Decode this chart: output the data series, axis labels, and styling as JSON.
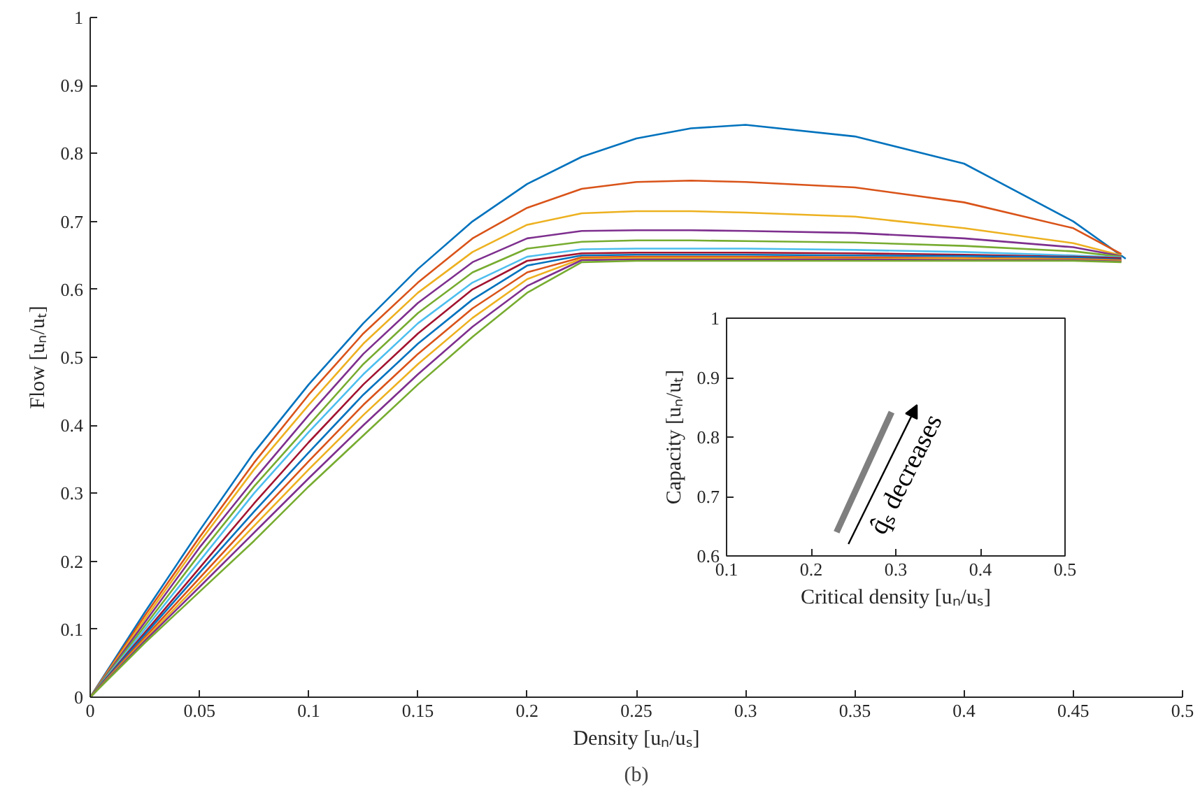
{
  "chart_data": [
    {
      "type": "line",
      "xlabel": "Density [uₙ/uₛ]",
      "ylabel": "Flow [uₙ/uₜ]",
      "annotations": [
        "(b)"
      ],
      "x": [
        0,
        0.025,
        0.05,
        0.075,
        0.1,
        0.125,
        0.15,
        0.175,
        0.2,
        0.225,
        0.25,
        0.275,
        0.3,
        0.35,
        0.4,
        0.45,
        0.472
      ],
      "xlim": [
        0,
        0.5
      ],
      "ylim": [
        0,
        1
      ],
      "xticks": [
        0,
        0.05,
        0.1,
        0.15,
        0.2,
        0.25,
        0.3,
        0.35,
        0.4,
        0.45,
        0.5
      ],
      "yticks": [
        0,
        0.1,
        0.2,
        0.3,
        0.4,
        0.5,
        0.6,
        0.7,
        0.8,
        0.9,
        1
      ],
      "series": [
        {
          "color": "#0072bd",
          "x": [
            0,
            0.025,
            0.05,
            0.075,
            0.1,
            0.125,
            0.15,
            0.175,
            0.2,
            0.225,
            0.25,
            0.275,
            0.3,
            0.35,
            0.4,
            0.45,
            0.474
          ],
          "values": [
            0,
            0.125,
            0.245,
            0.36,
            0.46,
            0.55,
            0.63,
            0.7,
            0.755,
            0.795,
            0.822,
            0.837,
            0.842,
            0.825,
            0.785,
            0.7,
            0.645
          ]
        },
        {
          "color": "#d95319",
          "values": [
            0,
            0.12,
            0.235,
            0.345,
            0.445,
            0.535,
            0.61,
            0.675,
            0.72,
            0.748,
            0.758,
            0.76,
            0.758,
            0.75,
            0.728,
            0.69,
            0.652
          ]
        },
        {
          "color": "#edb120",
          "values": [
            0,
            0.115,
            0.228,
            0.335,
            0.43,
            0.52,
            0.595,
            0.655,
            0.695,
            0.712,
            0.715,
            0.715,
            0.713,
            0.707,
            0.69,
            0.668,
            0.65
          ]
        },
        {
          "color": "#7e2f8e",
          "values": [
            0,
            0.11,
            0.22,
            0.32,
            0.415,
            0.505,
            0.58,
            0.64,
            0.675,
            0.686,
            0.687,
            0.687,
            0.686,
            0.683,
            0.675,
            0.662,
            0.649
          ]
        },
        {
          "color": "#77ac30",
          "values": [
            0,
            0.105,
            0.21,
            0.31,
            0.4,
            0.49,
            0.565,
            0.625,
            0.66,
            0.67,
            0.672,
            0.672,
            0.671,
            0.669,
            0.664,
            0.656,
            0.648
          ]
        },
        {
          "color": "#4dbeee",
          "values": [
            0,
            0.1,
            0.2,
            0.3,
            0.39,
            0.475,
            0.55,
            0.61,
            0.648,
            0.659,
            0.66,
            0.66,
            0.66,
            0.658,
            0.655,
            0.65,
            0.647
          ]
        },
        {
          "color": "#a2142f",
          "values": [
            0,
            0.095,
            0.19,
            0.285,
            0.375,
            0.46,
            0.535,
            0.6,
            0.642,
            0.653,
            0.654,
            0.654,
            0.654,
            0.653,
            0.651,
            0.648,
            0.646
          ]
        },
        {
          "color": "#0072bd",
          "values": [
            0,
            0.092,
            0.183,
            0.273,
            0.36,
            0.445,
            0.52,
            0.585,
            0.635,
            0.65,
            0.651,
            0.651,
            0.651,
            0.65,
            0.649,
            0.647,
            0.644
          ]
        },
        {
          "color": "#d95319",
          "values": [
            0,
            0.088,
            0.175,
            0.262,
            0.347,
            0.43,
            0.505,
            0.572,
            0.625,
            0.647,
            0.648,
            0.648,
            0.648,
            0.647,
            0.646,
            0.645,
            0.643
          ]
        },
        {
          "color": "#edb120",
          "values": [
            0,
            0.085,
            0.168,
            0.252,
            0.335,
            0.415,
            0.49,
            0.558,
            0.615,
            0.645,
            0.646,
            0.646,
            0.646,
            0.645,
            0.645,
            0.644,
            0.642
          ]
        },
        {
          "color": "#7e2f8e",
          "values": [
            0,
            0.083,
            0.162,
            0.242,
            0.322,
            0.4,
            0.475,
            0.545,
            0.605,
            0.643,
            0.644,
            0.644,
            0.644,
            0.644,
            0.643,
            0.643,
            0.641
          ]
        },
        {
          "color": "#77ac30",
          "values": [
            0,
            0.08,
            0.155,
            0.23,
            0.31,
            0.385,
            0.46,
            0.53,
            0.595,
            0.64,
            0.642,
            0.642,
            0.642,
            0.642,
            0.642,
            0.642,
            0.64
          ]
        }
      ]
    },
    {
      "type": "line",
      "xlabel": "Critical density [uₙ/uₛ]",
      "ylabel": "Capacity [uₙ/uₜ]",
      "annotations": [
        "q̂ₛ decreases"
      ],
      "x": [
        0.23,
        0.295
      ],
      "xlim": [
        0.1,
        0.5
      ],
      "ylim": [
        0.6,
        1
      ],
      "xticks": [
        0.1,
        0.2,
        0.3,
        0.4,
        0.5
      ],
      "yticks": [
        0.6,
        0.7,
        0.8,
        0.9,
        1
      ],
      "series": [
        {
          "color": "#7f7f7f",
          "values": [
            0.64,
            0.842
          ]
        }
      ]
    }
  ]
}
